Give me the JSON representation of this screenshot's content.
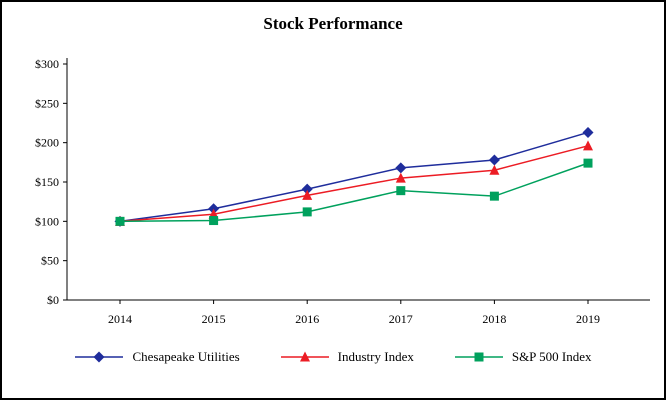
{
  "chart_data": {
    "type": "line",
    "title": "Stock Performance",
    "xlabel": "",
    "ylabel": "",
    "x": [
      "2014",
      "2015",
      "2016",
      "2017",
      "2018",
      "2019"
    ],
    "ylim": [
      0,
      300
    ],
    "y_ticks": [
      0,
      50,
      100,
      150,
      200,
      250,
      300
    ],
    "y_tick_labels": [
      "$0",
      "$50",
      "$100",
      "$150",
      "$200",
      "$250",
      "$300"
    ],
    "grid": false,
    "legend_position": "bottom",
    "series": [
      {
        "name": "Chesapeake Utilities",
        "color": "#1f2d9c",
        "marker": "diamond",
        "values": [
          100,
          116,
          141,
          168,
          178,
          213
        ]
      },
      {
        "name": "Industry Index",
        "color": "#ec1c24",
        "marker": "triangle",
        "values": [
          100,
          109,
          133,
          155,
          165,
          196
        ]
      },
      {
        "name": "S&P 500 Index",
        "color": "#00a15d",
        "marker": "square",
        "values": [
          100,
          101,
          112,
          139,
          132,
          174
        ]
      }
    ]
  }
}
